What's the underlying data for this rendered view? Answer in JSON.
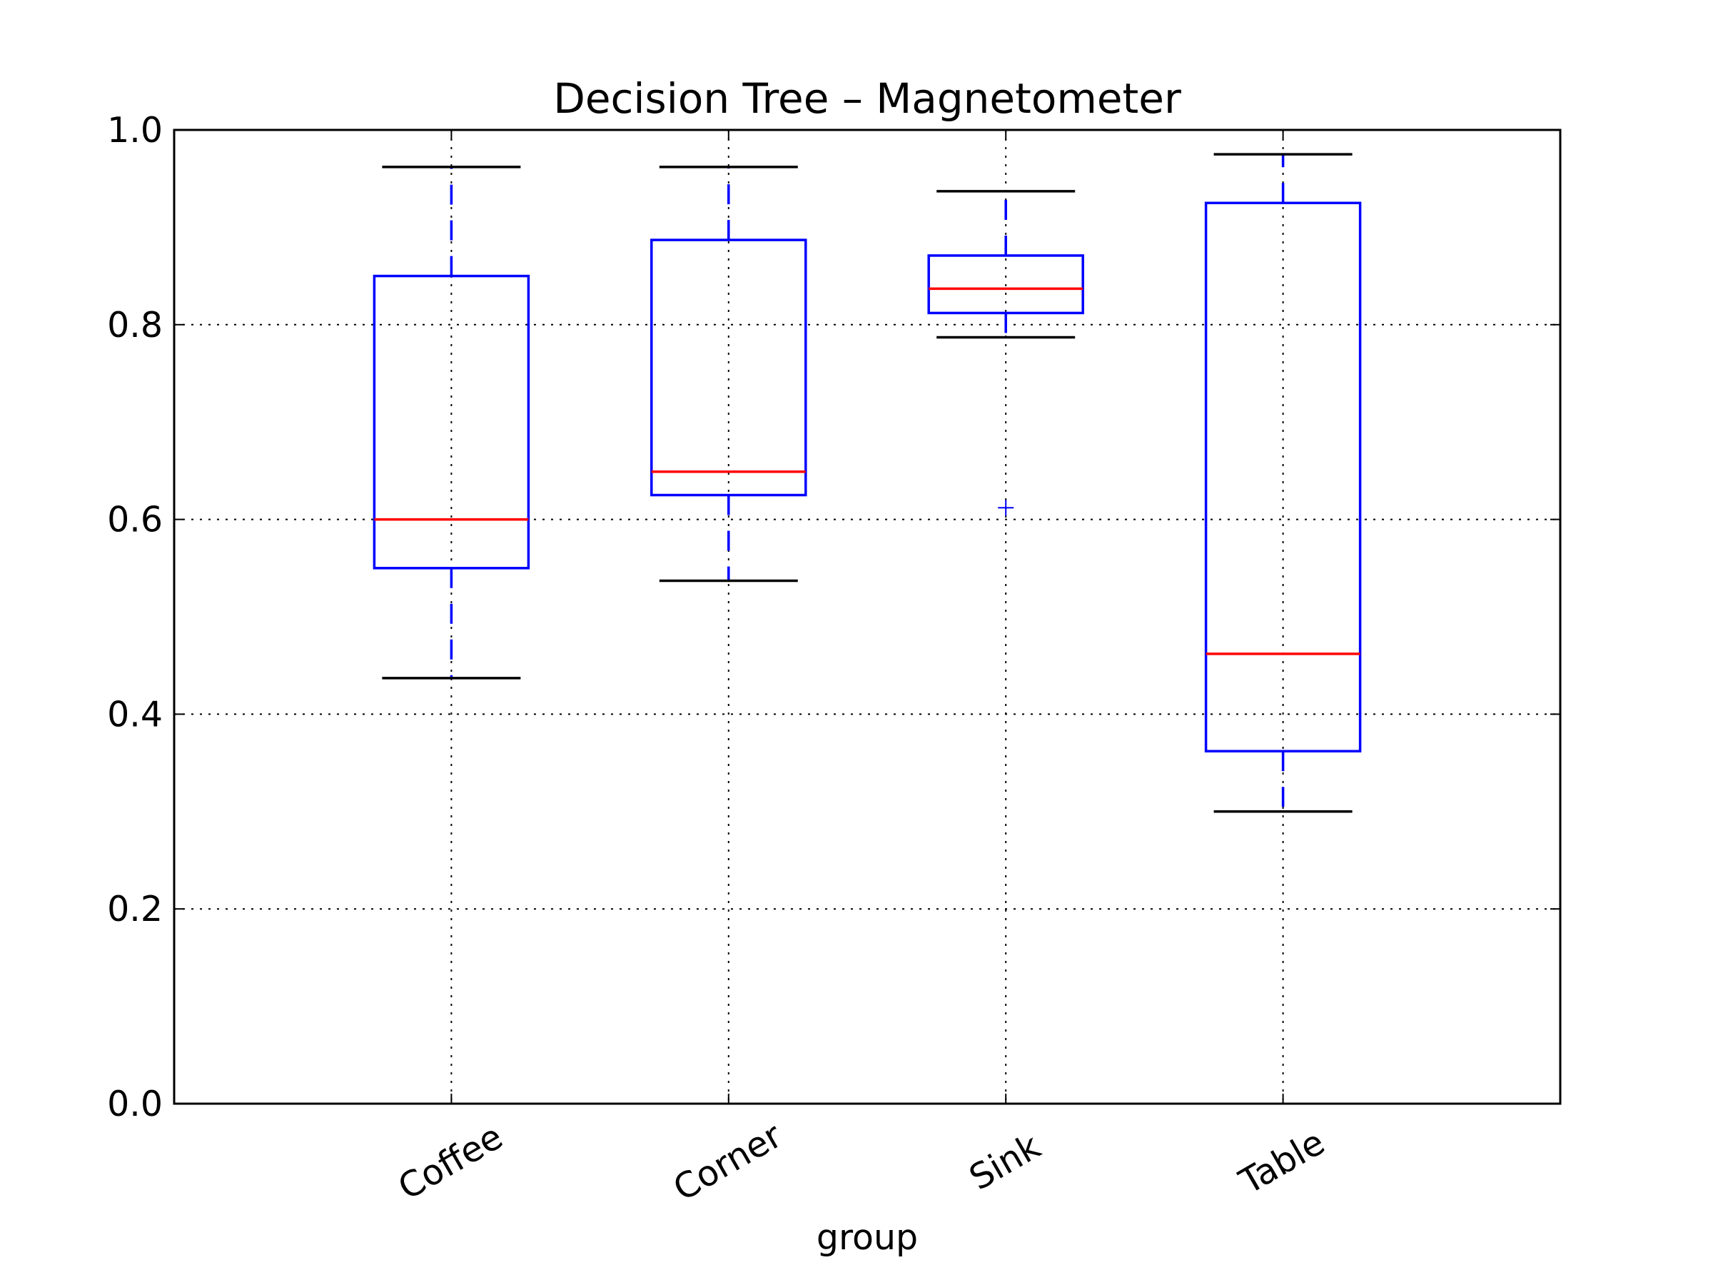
{
  "chart_data": {
    "type": "box",
    "title": "Decision Tree – Magnetometer",
    "xlabel": "group",
    "ylabel": "",
    "ylim": [
      0.0,
      1.0
    ],
    "yticks": [
      "0.0",
      "0.2",
      "0.4",
      "0.6",
      "0.8",
      "1.0"
    ],
    "grid": true,
    "categories": [
      "Coffee",
      "Corner",
      "Sink",
      "Table"
    ],
    "boxes": [
      {
        "whisker_low": 0.437,
        "q1": 0.55,
        "median": 0.6,
        "q3": 0.85,
        "whisker_high": 0.962,
        "outliers": []
      },
      {
        "whisker_low": 0.537,
        "q1": 0.625,
        "median": 0.649,
        "q3": 0.887,
        "whisker_high": 0.962,
        "outliers": []
      },
      {
        "whisker_low": 0.787,
        "q1": 0.812,
        "median": 0.837,
        "q3": 0.871,
        "whisker_high": 0.937,
        "outliers": [
          0.612
        ]
      },
      {
        "whisker_low": 0.3,
        "q1": 0.362,
        "median": 0.462,
        "q3": 0.925,
        "whisker_high": 0.975,
        "outliers": []
      }
    ],
    "colors": {
      "box": "#0000ff",
      "median": "#ff0000",
      "cap": "#000000",
      "outlier": "#0000ff"
    }
  }
}
